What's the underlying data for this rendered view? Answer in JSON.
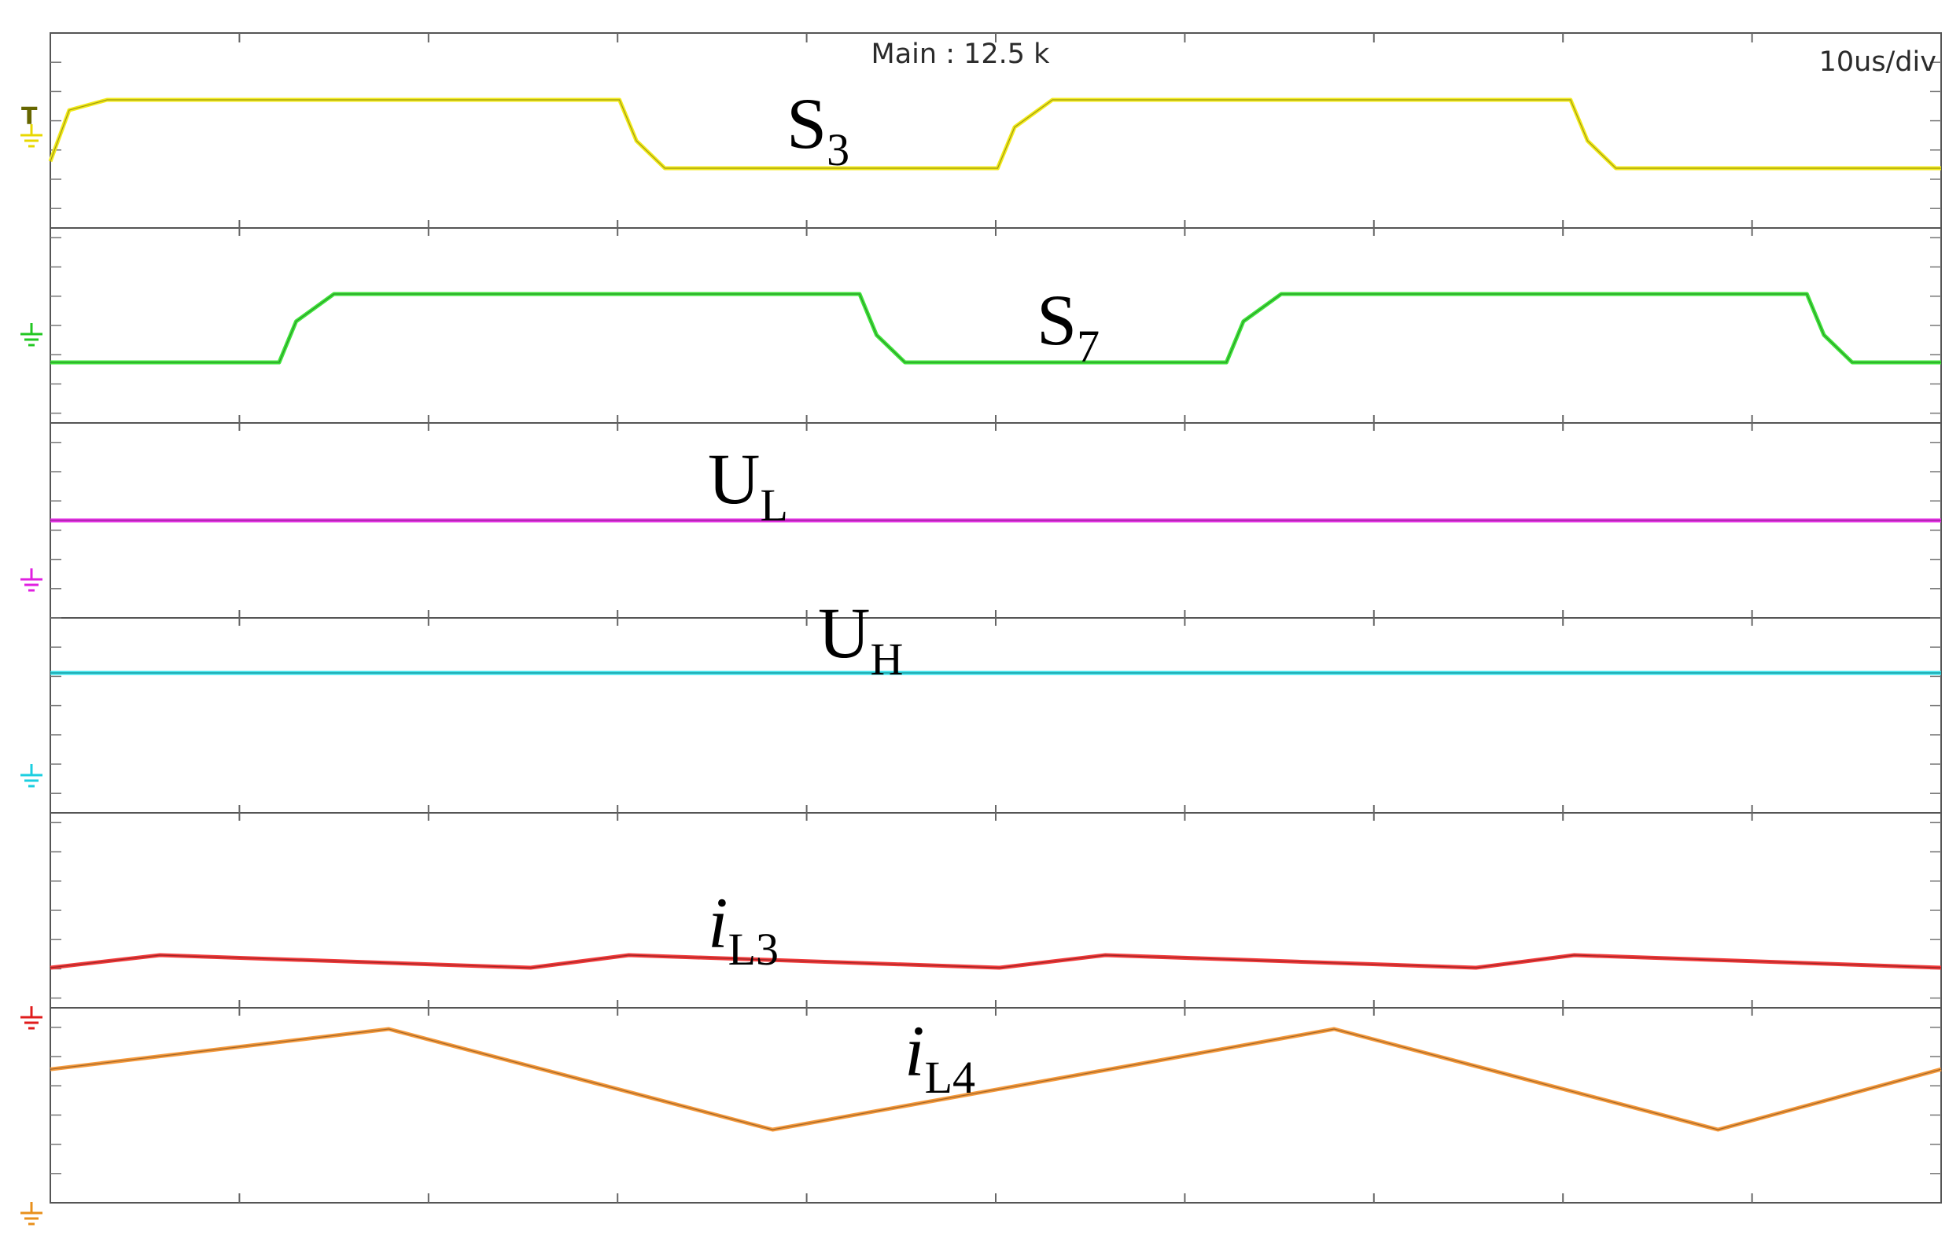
{
  "header": {
    "main_zoom": "Main : 12.5 k",
    "timebase": "10us/div"
  },
  "trigger_marker": "T",
  "chart_data": {
    "type": "line",
    "x_unit": "us",
    "x_per_div": 10,
    "x_divisions": 10,
    "xlim": [
      0,
      100
    ],
    "grid": true,
    "channels": [
      {
        "id": "s3",
        "label_main": "S",
        "label_sub": "3",
        "label_italic": false,
        "color": "#f2ea1a",
        "ground_color": "#e8d800",
        "points": [
          [
            0,
            0.1
          ],
          [
            1,
            0.85
          ],
          [
            3,
            1
          ],
          [
            30.1,
            1
          ],
          [
            31,
            0.4
          ],
          [
            32.5,
            0
          ],
          [
            50.1,
            0
          ],
          [
            51,
            0.6
          ],
          [
            53,
            1
          ],
          [
            80.4,
            1
          ],
          [
            81.3,
            0.4
          ],
          [
            82.8,
            0
          ],
          [
            100,
            0
          ]
        ]
      },
      {
        "id": "s7",
        "label_main": "S",
        "label_sub": "7",
        "label_italic": false,
        "color": "#3fe33a",
        "ground_color": "#22c722",
        "points": [
          [
            0,
            0
          ],
          [
            12.1,
            0
          ],
          [
            13,
            0.6
          ],
          [
            15,
            1
          ],
          [
            42.8,
            1
          ],
          [
            43.7,
            0.4
          ],
          [
            45.2,
            0
          ],
          [
            62.2,
            0
          ],
          [
            63.1,
            0.6
          ],
          [
            65.1,
            1
          ],
          [
            92.9,
            1
          ],
          [
            93.8,
            0.4
          ],
          [
            95.3,
            0
          ],
          [
            100,
            0
          ]
        ]
      },
      {
        "id": "ul",
        "label_main": "U",
        "label_sub": "L",
        "label_italic": false,
        "color": "#e633e6",
        "ground_color": "#e020e0",
        "points": [
          [
            0,
            1
          ],
          [
            100,
            1
          ]
        ]
      },
      {
        "id": "uh",
        "label_main": "U",
        "label_sub": "H",
        "label_italic": false,
        "color": "#31e0ea",
        "ground_color": "#1ccfe0",
        "points": [
          [
            0,
            1
          ],
          [
            100,
            1
          ]
        ]
      },
      {
        "id": "il3",
        "label_main": "i",
        "label_sub": "L3",
        "label_italic": true,
        "color": "#f03a3a",
        "ground_color": "#e01c1c",
        "points": [
          [
            0,
            0
          ],
          [
            5.8,
            1
          ],
          [
            25.4,
            0
          ],
          [
            30.6,
            1
          ],
          [
            50.2,
            0
          ],
          [
            55.8,
            1
          ],
          [
            75.4,
            0
          ],
          [
            80.6,
            1
          ],
          [
            100,
            0
          ]
        ]
      },
      {
        "id": "il4",
        "label_main": "i",
        "label_sub": "L4",
        "label_italic": true,
        "color": "#f59a3d",
        "ground_color": "#e8901c",
        "points": [
          [
            0,
            0.6
          ],
          [
            17.9,
            1
          ],
          [
            38.2,
            0
          ],
          [
            67.9,
            1
          ],
          [
            88.2,
            0
          ],
          [
            100,
            0.6
          ]
        ]
      }
    ]
  }
}
